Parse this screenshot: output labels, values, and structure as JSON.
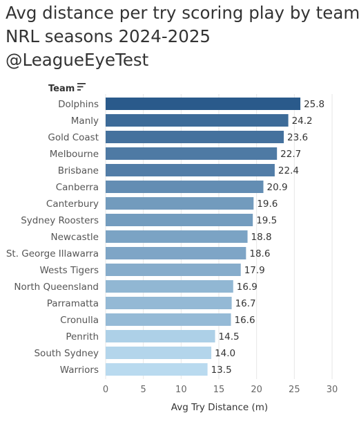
{
  "title_lines": [
    "Avg distance per try scoring play by team",
    "NRL seasons 2024-2025",
    "@LeagueEyeTest"
  ],
  "icons": {
    "sort": "sort-descending-icon"
  },
  "chart_data": {
    "type": "bar",
    "orientation": "horizontal",
    "category_header": "Team",
    "categories": [
      "Dolphins",
      "Manly",
      "Gold Coast",
      "Melbourne",
      "Brisbane",
      "Canberra",
      "Canterbury",
      "Sydney Roosters",
      "Newcastle",
      "St. George Illawarra",
      "Wests Tigers",
      "North Queensland",
      "Parramatta",
      "Cronulla",
      "Penrith",
      "South Sydney",
      "Warriors"
    ],
    "values": [
      25.8,
      24.2,
      23.6,
      22.7,
      22.4,
      20.9,
      19.6,
      19.5,
      18.8,
      18.6,
      17.9,
      16.9,
      16.7,
      16.6,
      14.5,
      14.0,
      13.5
    ],
    "value_labels": [
      "25.8",
      "24.2",
      "23.6",
      "22.7",
      "22.4",
      "20.9",
      "19.6",
      "19.5",
      "18.8",
      "18.6",
      "17.9",
      "16.9",
      "16.7",
      "16.6",
      "14.5",
      "14.0",
      "13.5"
    ],
    "xlabel": "Avg Try Distance (m)",
    "xlim": [
      0,
      30
    ],
    "x_ticks": [
      0,
      5,
      10,
      15,
      20,
      25,
      30
    ],
    "grid": true,
    "color_scale": {
      "low": "#b9daef",
      "high": "#2a5a8b"
    }
  }
}
